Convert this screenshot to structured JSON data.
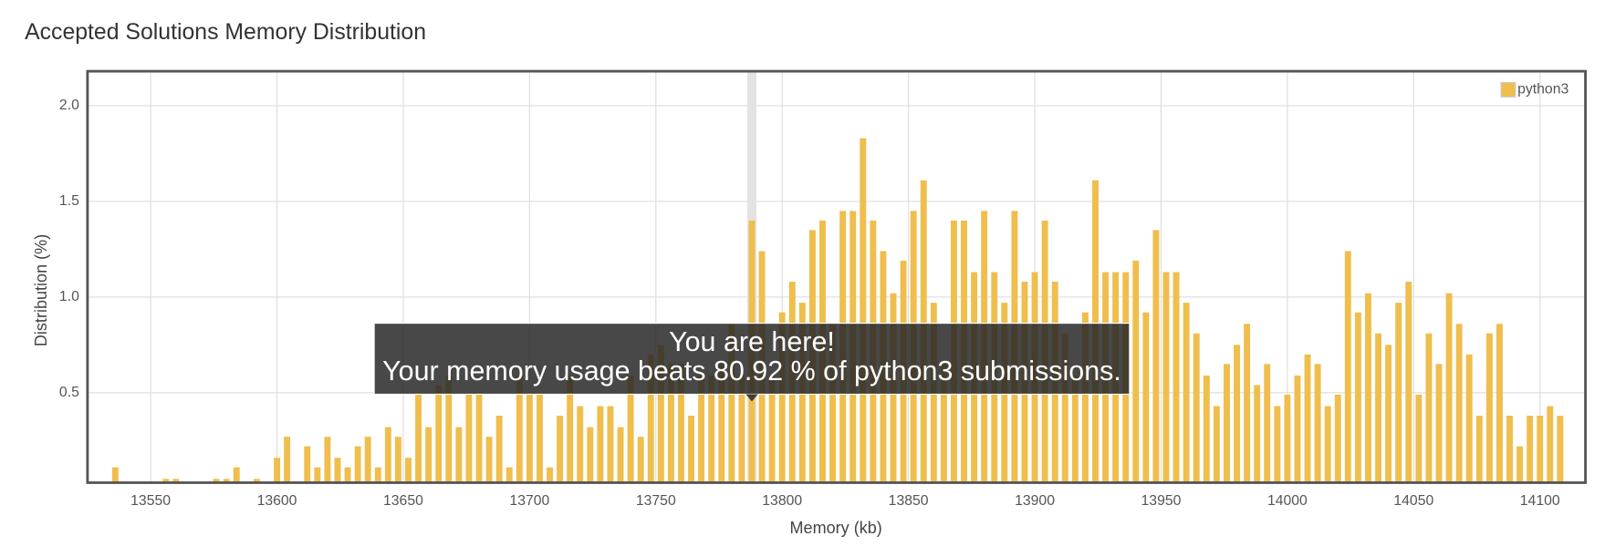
{
  "chart_data": {
    "type": "bar",
    "title": "Accepted Solutions Memory Distribution",
    "xlabel": "Memory (kb)",
    "ylabel": "Distribution (%)",
    "x": [
      13536,
      13556,
      13560,
      13576,
      13580,
      13584,
      13592,
      13600,
      13604,
      13612,
      13616,
      13620,
      13624,
      13628,
      13632,
      13636,
      13640,
      13644,
      13648,
      13652,
      13656,
      13660,
      13664,
      13668,
      13672,
      13676,
      13680,
      13684,
      13688,
      13692,
      13696,
      13700,
      13704,
      13708,
      13712,
      13716,
      13720,
      13724,
      13728,
      13732,
      13736,
      13740,
      13744,
      13748,
      13752,
      13756,
      13760,
      13764,
      13768,
      13772,
      13776,
      13780,
      13784,
      13788,
      13792,
      13796,
      13800,
      13804,
      13808,
      13812,
      13816,
      13820,
      13824,
      13828,
      13832,
      13836,
      13840,
      13844,
      13848,
      13852,
      13856,
      13860,
      13864,
      13868,
      13872,
      13876,
      13880,
      13884,
      13888,
      13892,
      13896,
      13900,
      13904,
      13908,
      13912,
      13916,
      13920,
      13924,
      13928,
      13932,
      13936,
      13940,
      13944,
      13948,
      13952,
      13956,
      13960,
      13964,
      13968,
      13972,
      13976,
      13980,
      13984,
      13988,
      13992,
      13996,
      14000,
      14004,
      14008,
      14012,
      14016,
      14020,
      14024,
      14028,
      14032,
      14036,
      14040,
      14044,
      14048,
      14052,
      14056,
      14060,
      14064,
      14068,
      14072,
      14076,
      14080,
      14084,
      14088,
      14092,
      14096,
      14100,
      14104,
      14108
    ],
    "series": [
      {
        "name": "python3",
        "color": "#efbe4d",
        "values": [
          0.11,
          0.05,
          0.05,
          0.05,
          0.05,
          0.11,
          0.05,
          0.16,
          0.27,
          0.22,
          0.11,
          0.27,
          0.16,
          0.11,
          0.22,
          0.27,
          0.11,
          0.32,
          0.27,
          0.16,
          0.49,
          0.32,
          0.54,
          0.59,
          0.32,
          0.49,
          0.49,
          0.27,
          0.38,
          0.11,
          0.59,
          0.49,
          0.49,
          0.11,
          0.38,
          0.59,
          0.43,
          0.32,
          0.43,
          0.43,
          0.32,
          0.59,
          0.27,
          0.7,
          0.75,
          0.65,
          0.65,
          0.38,
          0.59,
          0.59,
          0.65,
          0.86,
          0.59,
          1.4,
          1.24,
          0.59,
          0.92,
          1.08,
          0.97,
          1.35,
          1.4,
          0.86,
          1.45,
          1.45,
          1.83,
          1.4,
          1.24,
          1.02,
          1.19,
          1.45,
          1.61,
          0.97,
          0.65,
          1.4,
          1.4,
          1.13,
          1.45,
          1.13,
          0.97,
          1.45,
          1.08,
          1.13,
          1.4,
          1.08,
          0.81,
          0.59,
          0.92,
          1.61,
          1.13,
          1.13,
          1.13,
          1.19,
          0.92,
          1.35,
          1.13,
          1.13,
          0.97,
          0.81,
          0.59,
          0.43,
          0.65,
          0.75,
          0.86,
          0.54,
          0.65,
          0.43,
          0.49,
          0.59,
          0.7,
          0.65,
          0.43,
          0.49,
          1.24,
          0.92,
          1.02,
          0.81,
          0.75,
          0.97,
          1.08,
          0.49,
          0.81,
          0.65,
          1.02,
          0.86,
          0.7,
          0.38,
          0.81,
          0.86,
          0.38,
          0.22,
          0.38,
          0.38,
          0.43,
          0.38
        ]
      }
    ],
    "highlight": 13788,
    "annotations": [
      "You are here!",
      "Your memory usage beats 80.92 % of python3 submissions."
    ],
    "xlim": [
      13525,
      14118
    ],
    "ylim": [
      0.03,
      2.18
    ],
    "xticks": [
      13550,
      13600,
      13650,
      13700,
      13750,
      13800,
      13850,
      13900,
      13950,
      14000,
      14050,
      14100
    ],
    "yticks": [
      0.5,
      {
        "value": 1,
        "label": "1.0"
      },
      1.5,
      {
        "value": 2,
        "label": "2.0"
      }
    ],
    "grid": true,
    "legend": "upper right"
  }
}
